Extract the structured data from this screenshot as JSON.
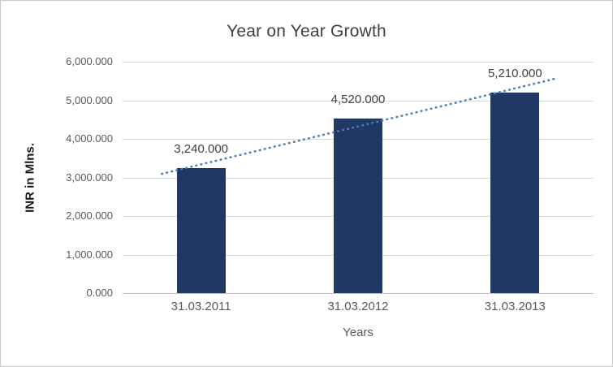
{
  "chart_data": {
    "type": "bar",
    "title": "Year on Year Growth",
    "xlabel": "Years",
    "ylabel": "INR in Mlns.",
    "categories": [
      "31.03.2011",
      "31.03.2012",
      "31.03.2013"
    ],
    "values": [
      3240,
      4520,
      5210
    ],
    "value_labels": [
      "3,240.000",
      "4,520.000",
      "5,210.000"
    ],
    "ylim": [
      0,
      6000
    ],
    "ytick_step": 1000,
    "ytick_labels": [
      "0.000",
      "1,000.000",
      "2,000.000",
      "3,000.000",
      "4,000.000",
      "5,000.000",
      "6,000.000"
    ],
    "grid": true,
    "legend": "none",
    "trendline": {
      "type": "linear",
      "style": "dotted"
    },
    "colors": {
      "bar": "#1F3864",
      "trend": "#4A7EBB",
      "grid": "#D9D9D9",
      "axis": "#BFBFBF",
      "text": "#595959",
      "title": "#404040",
      "border": "#C9C9C9",
      "background": "#FFFFFF"
    }
  }
}
